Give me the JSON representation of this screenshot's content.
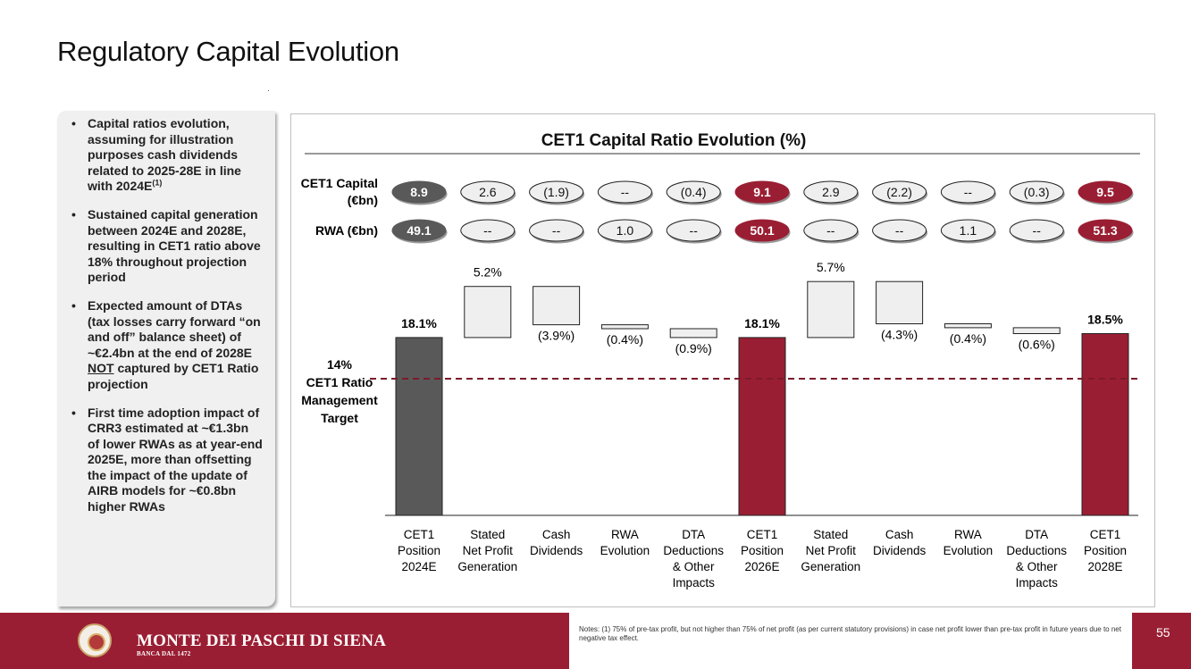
{
  "slide": {
    "title": "Regulatory Capital Evolution",
    "page_number": "55"
  },
  "bullets": {
    "b1_text": "Capital ratios evolution, assuming for illustration purposes cash dividends related to 2025-28E in line with 2024E",
    "b1_sup": "(1)",
    "b2_text": "Sustained capital generation between 2024E and 2028E, resulting in CET1 ratio above 18% throughout projection period",
    "b3_pre": "Expected amount of DTAs (tax losses carry forward “on and off” balance sheet) of ~€2.4bn at the end of 2028E ",
    "b3_under": "NOT",
    "b3_post": " captured by CET1 Ratio projection",
    "b4_text": "First time adoption impact of CRR3 estimated at ~€1.3bn of lower RWAs as at year-end 2025E, more than offsetting the impact of the update of AIRB models for ~€0.8bn higher RWAs"
  },
  "footer": {
    "brand_name": "MONTE DEI PASCHI DI SIENA",
    "brand_sub": "BANCA DAL 1472",
    "notes": "Notes: (1) 75% of pre-tax profit, but not higher than 75% of net profit (as per current statutory provisions) in case net profit lower than pre-tax profit in future years due to net negative tax effect."
  },
  "colors": {
    "brand": "#9a1e33",
    "position_2024": "#595959",
    "position_later": "#9a1e33",
    "delta_fill": "#efefef",
    "target_line": "#7b1a2b"
  },
  "chart_data": {
    "type": "bar",
    "subtype": "waterfall",
    "title": "CET1 Capital Ratio Evolution (%)",
    "ylim": [
      0,
      21
    ],
    "grid": false,
    "categories": [
      "CET1 Position 2024E",
      "Stated Net Profit Generation",
      "Cash Dividends",
      "RWA Evolution",
      "DTA Deductions & Other Impacts",
      "CET1 Position 2026E",
      "Stated Net Profit Generation",
      "Cash Dividends",
      "RWA Evolution",
      "DTA Deductions & Other Impacts",
      "CET1 Position 2028E"
    ],
    "category_lines": [
      [
        "CET1",
        "Position",
        "2024E"
      ],
      [
        "Stated",
        "Net Profit",
        "Generation"
      ],
      [
        "Cash",
        "Dividends"
      ],
      [
        "RWA",
        "Evolution"
      ],
      [
        "DTA",
        "Deductions",
        "& Other",
        "Impacts"
      ],
      [
        "CET1",
        "Position",
        "2026E"
      ],
      [
        "Stated",
        "Net Profit",
        "Generation"
      ],
      [
        "Cash",
        "Dividends"
      ],
      [
        "RWA",
        "Evolution"
      ],
      [
        "DTA",
        "Deductions",
        "& Other",
        "Impacts"
      ],
      [
        "CET1",
        "Position",
        "2028E"
      ]
    ],
    "kinds": [
      "total",
      "delta",
      "delta",
      "delta",
      "delta",
      "total",
      "delta",
      "delta",
      "delta",
      "delta",
      "total"
    ],
    "values": [
      18.1,
      5.2,
      -3.9,
      -0.4,
      -0.9,
      18.1,
      5.7,
      -4.3,
      -0.4,
      -0.6,
      18.5
    ],
    "value_labels": [
      "18.1%",
      "5.2%",
      "(3.9%)",
      "(0.4%)",
      "(0.9%)",
      "18.1%",
      "5.7%",
      "(4.3%)",
      "(0.4%)",
      "(0.6%)",
      "18.5%"
    ],
    "target": {
      "value": 14,
      "label_lines": [
        "14%",
        "CET1 Ratio",
        "Management",
        "Target"
      ]
    },
    "cet1_capital": {
      "label_lines": [
        "CET1 Capital",
        "(€bn)"
      ],
      "values": [
        "8.9",
        "2.6",
        "(1.9)",
        "--",
        "(0.4)",
        "9.1",
        "2.9",
        "(2.2)",
        "--",
        "(0.3)",
        "9.5"
      ]
    },
    "rwa": {
      "label": "RWA (€bn)",
      "values": [
        "49.1",
        "--",
        "--",
        "1.0",
        "--",
        "50.1",
        "--",
        "--",
        "1.1",
        "--",
        "51.3"
      ]
    }
  }
}
